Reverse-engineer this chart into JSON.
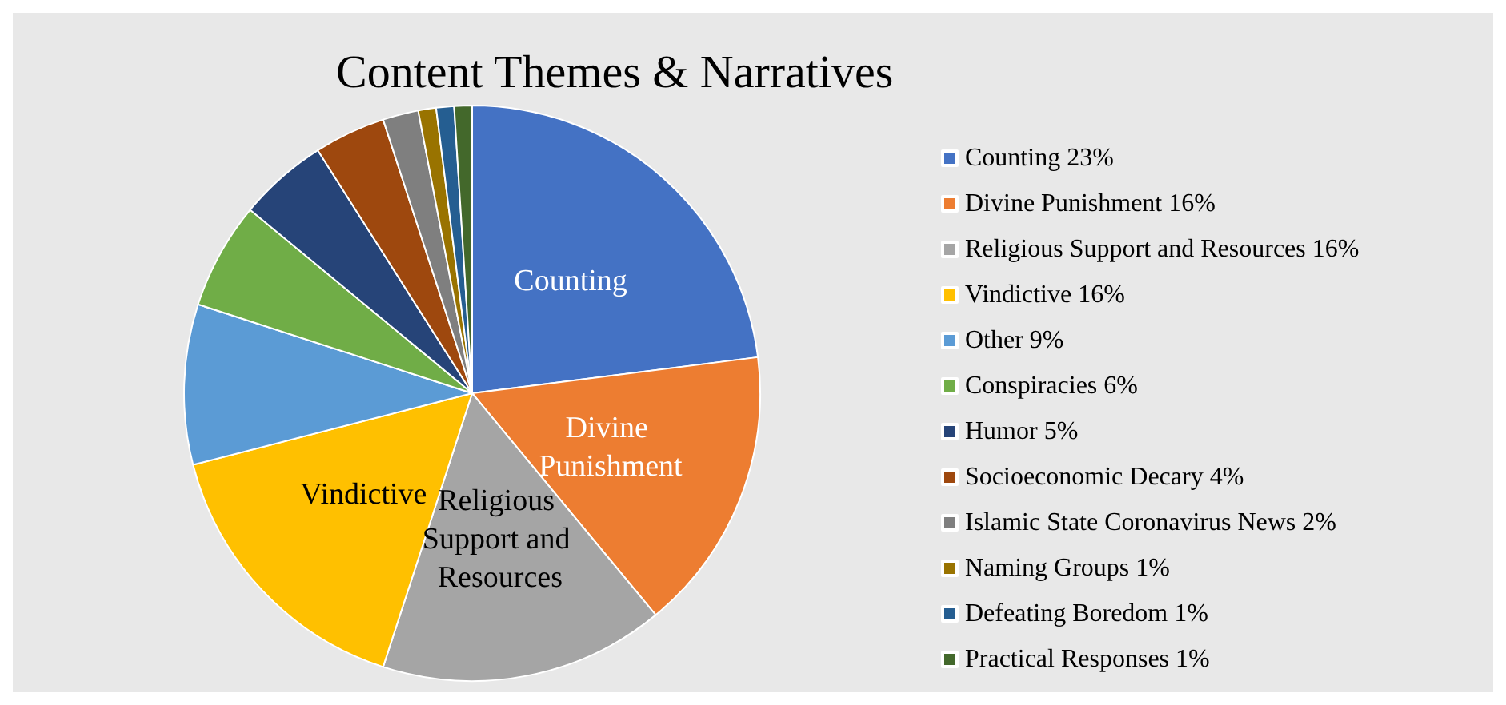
{
  "chart_data": {
    "type": "pie",
    "title": "Content Themes & Narratives",
    "categories": [
      "Counting",
      "Divine Punishment",
      "Religious Support and Resources",
      "Vindictive",
      "Other",
      "Conspiracies",
      "Humor",
      "Socioeconomic Decary",
      "Islamic State Coronavirus News",
      "Naming Groups",
      "Defeating Boredom",
      "Practical Responses"
    ],
    "values": [
      23,
      16,
      16,
      16,
      9,
      6,
      5,
      4,
      2,
      1,
      1,
      1
    ],
    "value_labels": [
      "23%",
      "16%",
      "16%",
      "16%",
      "9%",
      "6%",
      "5%",
      "4%",
      "2%",
      "1%",
      "1%",
      "1%"
    ],
    "colors": [
      "#4472c4",
      "#ed7d31",
      "#a5a5a5",
      "#ffc000",
      "#5b9bd5",
      "#70ad47",
      "#264478",
      "#9e480e",
      "#7f7f7f",
      "#997300",
      "#255e91",
      "#43682b"
    ],
    "legend": "right"
  }
}
